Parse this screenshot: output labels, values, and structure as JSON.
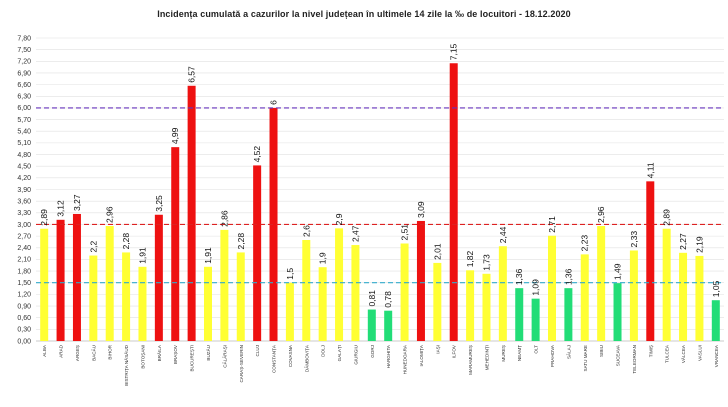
{
  "chart_data": {
    "type": "bar",
    "title": "Incidența cumulată a cazurilor la nivel județean în ultimele 14 zile    la ‰ de locuitori  - 18.12.2020",
    "ytick_labels": [
      "0,00",
      "0,30",
      "0,60",
      "0,90",
      "1,20",
      "1,50",
      "1,80",
      "2,10",
      "2,40",
      "2,70",
      "3,00",
      "3,30",
      "3,60",
      "3,90",
      "4,20",
      "4,50",
      "4,80",
      "5,10",
      "5,40",
      "5,70",
      "6,00",
      "6,30",
      "6,60",
      "6,90",
      "7,20",
      "7,50",
      "7,80"
    ],
    "ylim": [
      0,
      7.8
    ],
    "categories": [
      "ALBA",
      "ARAD",
      "ARGEȘ",
      "BACĂU",
      "BIHOR",
      "BISTRIȚA NĂSĂUD",
      "BOTOȘANI",
      "BRĂILA",
      "BRAȘOV",
      "BUCUREȘTI",
      "BUZĂU",
      "CĂLĂRAȘI",
      "CARAȘ-SEVERIN",
      "CLUJ",
      "CONSTANȚA",
      "COVASNA",
      "DÂMBOVIȚA",
      "DOLJ",
      "GALAȚI",
      "GIURGIU",
      "GORJ",
      "HARGHITA",
      "HUNEDOARA",
      "IALOMIȚA",
      "IAȘI",
      "ILFOV",
      "MARAMUREȘ",
      "MEHEDINȚI",
      "MUREȘ",
      "NEAMȚ",
      "OLT",
      "PRAHOVA",
      "SĂLAJ",
      "SATU MARE",
      "SIBIU",
      "SUCEAVA",
      "TELEORMAN",
      "TIMIȘ",
      "TULCEA",
      "VÂLCEA",
      "VASLUI",
      "VRANCEA"
    ],
    "values": [
      2.89,
      3.12,
      3.27,
      2.2,
      2.96,
      2.28,
      1.91,
      3.25,
      4.99,
      6.57,
      1.91,
      2.86,
      2.28,
      4.52,
      6,
      1.5,
      2.6,
      1.9,
      2.9,
      2.47,
      0.81,
      0.78,
      2.51,
      3.09,
      2.01,
      7.15,
      1.82,
      1.73,
      2.44,
      1.36,
      1.09,
      2.71,
      1.36,
      2.23,
      2.96,
      1.49,
      2.33,
      4.11,
      2.89,
      2.27,
      2.19,
      1.05
    ],
    "value_labels": [
      "2,89",
      "3,12",
      "3,27",
      "2,2",
      "2,96",
      "2,28",
      "1,91",
      "3,25",
      "4,99",
      "6,57",
      "1,91",
      "2,86",
      "2,28",
      "4,52",
      "6",
      "1,5",
      "2,6",
      "1,9",
      "2,9",
      "2,47",
      "0,81",
      "0,78",
      "2,51",
      "3,09",
      "2,01",
      "7,15",
      "1,82",
      "1,73",
      "2,44",
      "1,36",
      "1,09",
      "2,71",
      "1,36",
      "2,23",
      "2,96",
      "1,49",
      "2,33",
      "4,11",
      "2,89",
      "2,27",
      "2,19",
      "1,05"
    ],
    "colors": {
      "red": "#ee1111",
      "yellow": "#ffff33",
      "green": "#22dd77"
    },
    "bar_colors": [
      "yellow",
      "red",
      "red",
      "yellow",
      "yellow",
      "yellow",
      "yellow",
      "red",
      "red",
      "red",
      "yellow",
      "yellow",
      "yellow",
      "red",
      "red",
      "yellow",
      "yellow",
      "yellow",
      "yellow",
      "yellow",
      "green",
      "green",
      "yellow",
      "red",
      "yellow",
      "red",
      "yellow",
      "yellow",
      "yellow",
      "green",
      "green",
      "yellow",
      "green",
      "yellow",
      "yellow",
      "green",
      "yellow",
      "red",
      "yellow",
      "yellow",
      "yellow",
      "green"
    ],
    "thresholds": [
      {
        "value": 6.0,
        "color": "#6633bb",
        "style": "dashed"
      },
      {
        "value": 3.0,
        "color": "#dd2222",
        "style": "dashed"
      },
      {
        "value": 1.5,
        "color": "#33aacc",
        "style": "dashed"
      }
    ],
    "grid": true,
    "legend": "none"
  }
}
